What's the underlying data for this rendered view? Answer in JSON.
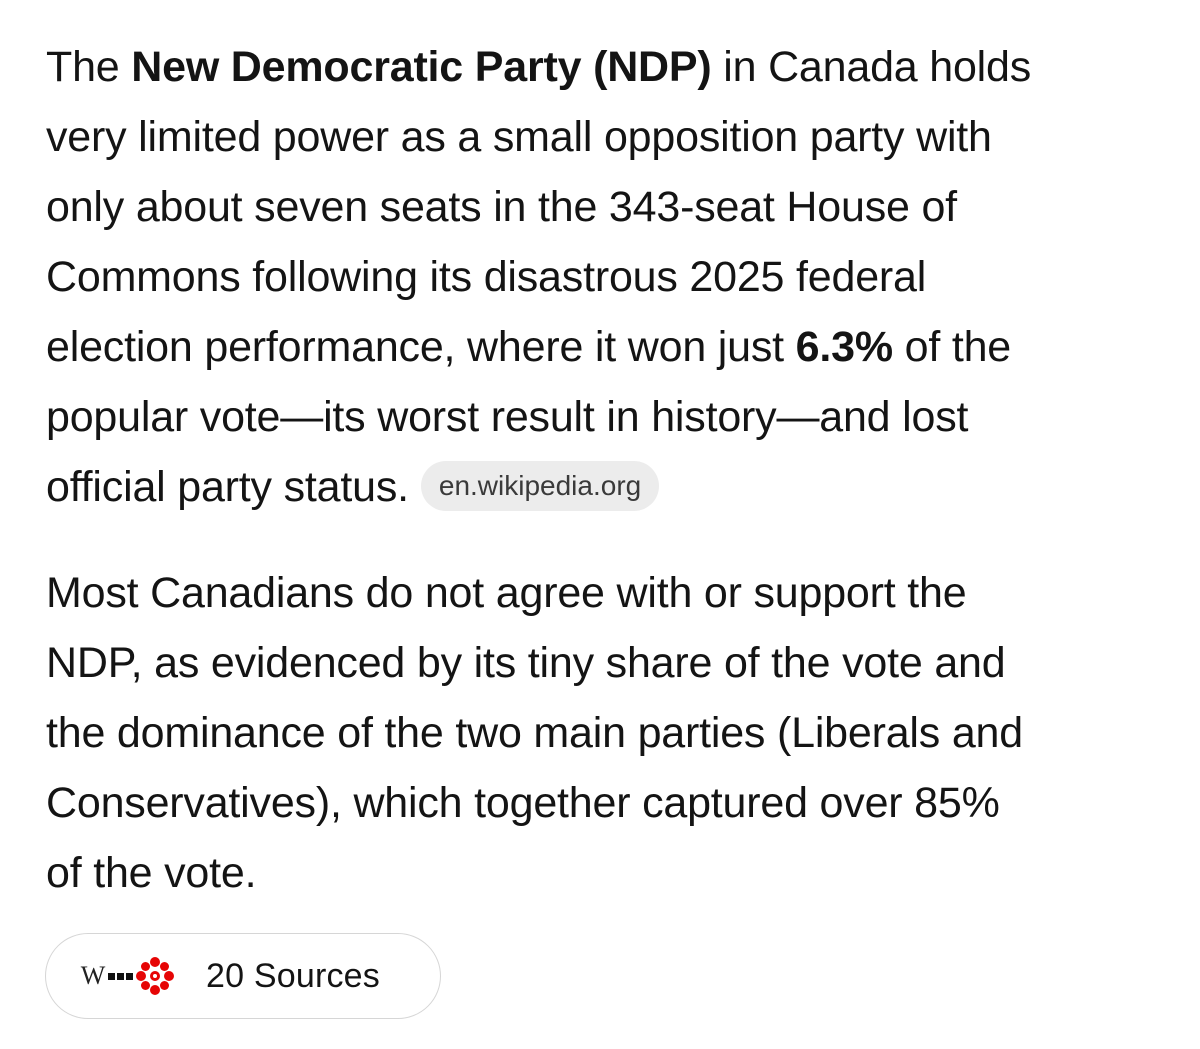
{
  "answer": {
    "paragraph1": {
      "l1_a": "The ",
      "l1_bold": "New Democratic Party (NDP)",
      "l1_b": " in Canada holds",
      "l2": "very limited power as a small opposition party with",
      "l3": "only about seven seats in the 343-seat House of",
      "l4": "Commons following its disastrous 2025 federal",
      "l5_a": "election performance, where it won just ",
      "l5_bold": "6.3%",
      "l5_b": " of the",
      "l6": "popular vote—its worst result in history—and lost",
      "l7": "official party status.",
      "citation": "en.wikipedia.org"
    },
    "paragraph2": {
      "l1": "Most Canadians do not agree with or support the",
      "l2": "NDP, as evidenced by its tiny share of the vote and",
      "l3": "the dominance of the two main parties (Liberals and",
      "l4": "Conservatives), which together captured over 85%",
      "l5": "of the vote."
    }
  },
  "sources": {
    "label": "20 Sources",
    "wiki_letter": "W",
    "icons": [
      "wikipedia-icon",
      "blocks-icon",
      "cbc-gem-icon"
    ],
    "cbc_color": "#e60505"
  }
}
